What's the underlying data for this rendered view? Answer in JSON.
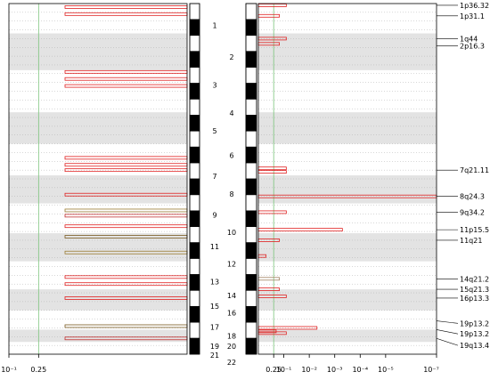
{
  "chart_data": {
    "type": "bar",
    "left_panel": {
      "x_scale": "linear",
      "xlim": [
        0.1,
        1
      ],
      "reference_line": 0.25,
      "tick_labels": [
        "10⁻¹",
        "0.25"
      ]
    },
    "right_panel": {
      "x_scale": "log",
      "x_direction": "reversed",
      "xlim": [
        1,
        1e-07
      ],
      "reference_line": 0.25,
      "tick_labels": [
        "0.25",
        "10⁻¹",
        "10⁻²",
        "10⁻³",
        "10⁻⁴",
        "10⁻⁵",
        "10⁻⁷"
      ]
    },
    "chromosomes_left": [
      "1",
      "3",
      "5",
      "7",
      "9",
      "11",
      "13",
      "15",
      "17",
      "19",
      "21"
    ],
    "chromosomes_right": [
      "2",
      "4",
      "6",
      "8",
      "10",
      "12",
      "14",
      "16",
      "18",
      "20",
      "22"
    ],
    "left_bars": [
      {
        "y": 0.01,
        "value": 0.7,
        "color": "#e02020"
      },
      {
        "y": 0.03,
        "value": 0.7,
        "color": "#e02020"
      },
      {
        "y": 0.195,
        "value": 0.7,
        "color": "#e02020"
      },
      {
        "y": 0.215,
        "value": 0.7,
        "color": "#e02020"
      },
      {
        "y": 0.235,
        "value": 0.7,
        "color": "#e02020"
      },
      {
        "y": 0.44,
        "value": 0.7,
        "color": "#e02020"
      },
      {
        "y": 0.46,
        "value": 0.7,
        "color": "#e02020"
      },
      {
        "y": 0.475,
        "value": 0.7,
        "color": "#e02020"
      },
      {
        "y": 0.545,
        "value": 0.7,
        "color": "#e02020"
      },
      {
        "y": 0.59,
        "value": 0.7,
        "color": "#9a7a30"
      },
      {
        "y": 0.605,
        "value": 0.7,
        "color": "#c03030"
      },
      {
        "y": 0.635,
        "value": 0.7,
        "color": "#e02020"
      },
      {
        "y": 0.665,
        "value": 0.7,
        "color": "#7a5a20"
      },
      {
        "y": 0.71,
        "value": 0.7,
        "color": "#9a7a30"
      },
      {
        "y": 0.78,
        "value": 0.7,
        "color": "#e02020"
      },
      {
        "y": 0.8,
        "value": 0.7,
        "color": "#e02020"
      },
      {
        "y": 0.84,
        "value": 0.7,
        "color": "#e02020"
      },
      {
        "y": 0.92,
        "value": 0.7,
        "color": "#7a5a20"
      },
      {
        "y": 0.955,
        "value": 0.7,
        "color": "#c03030"
      }
    ],
    "right_bars": [
      {
        "y": 0.005,
        "value": 0.08,
        "color": "#e02020"
      },
      {
        "y": 0.035,
        "value": 0.15,
        "color": "#e02020"
      },
      {
        "y": 0.1,
        "value": 0.08,
        "color": "#e02020"
      },
      {
        "y": 0.115,
        "value": 0.15,
        "color": "#e02020"
      },
      {
        "y": 0.47,
        "value": 0.08,
        "color": "#e02020"
      },
      {
        "y": 0.48,
        "value": 0.08,
        "color": "#e02020"
      },
      {
        "y": 0.55,
        "value": 1e-07,
        "color": "#e02020"
      },
      {
        "y": 0.595,
        "value": 0.08,
        "color": "#e02020"
      },
      {
        "y": 0.645,
        "value": 0.0005,
        "color": "#e02020"
      },
      {
        "y": 0.675,
        "value": 0.15,
        "color": "#e02020"
      },
      {
        "y": 0.72,
        "value": 0.5,
        "color": "#e02020"
      },
      {
        "y": 0.785,
        "value": 0.15,
        "color": "#a08060"
      },
      {
        "y": 0.815,
        "value": 0.15,
        "color": "#e02020"
      },
      {
        "y": 0.835,
        "value": 0.08,
        "color": "#e02020"
      },
      {
        "y": 0.925,
        "value": 0.005,
        "color": "#e02020"
      },
      {
        "y": 0.935,
        "value": 0.2,
        "color": "#e02020"
      },
      {
        "y": 0.94,
        "value": 0.08,
        "color": "#e02020"
      }
    ],
    "right_labels": [
      {
        "text": "1p36.32",
        "y": 0.005
      },
      {
        "text": "1p31.1",
        "y": 0.035
      },
      {
        "text": "1q44",
        "y": 0.1
      },
      {
        "text": "2p16.3",
        "y": 0.12
      },
      {
        "text": "7q21.11",
        "y": 0.475
      },
      {
        "text": "8q24.3",
        "y": 0.55
      },
      {
        "text": "9q34.2",
        "y": 0.595
      },
      {
        "text": "11p15.5",
        "y": 0.645
      },
      {
        "text": "11q21",
        "y": 0.675
      },
      {
        "text": "14q21.2",
        "y": 0.785
      },
      {
        "text": "15q21.3",
        "y": 0.815
      },
      {
        "text": "16p13.3",
        "y": 0.84
      },
      {
        "text": "19p13.2",
        "y": 0.905
      },
      {
        "text": "19p13.2",
        "y": 0.93
      },
      {
        "text": "19q13.41",
        "y": 0.955
      }
    ]
  },
  "colors": {
    "band_shade": "#e3e3e3",
    "ref_line": "#7dc57d",
    "bar_default": "#e02020",
    "ideogram_dark": "#000000",
    "axis": "#000000"
  }
}
